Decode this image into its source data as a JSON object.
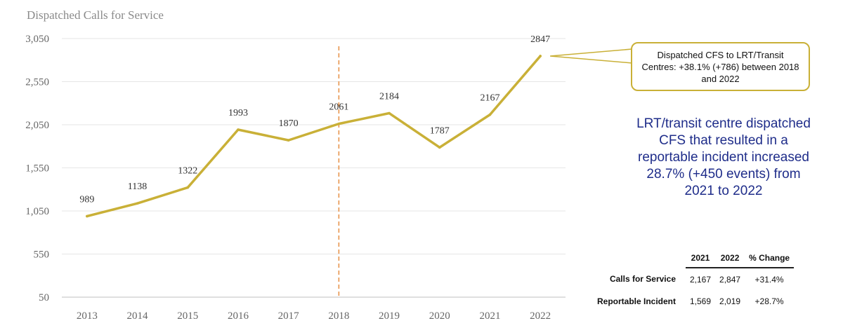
{
  "chart_data": {
    "type": "line",
    "title": "Dispatched Calls for Service",
    "categories": [
      "2013",
      "2014",
      "2015",
      "2016",
      "2017",
      "2018",
      "2019",
      "2020",
      "2021",
      "2022"
    ],
    "series": [
      {
        "values": [
          989,
          1138,
          1322,
          1993,
          1870,
          2061,
          2184,
          1787,
          2167,
          2847
        ],
        "color": "#c9b037"
      }
    ],
    "data_labels": [
      "989",
      "1138",
      "1322",
      "1993",
      "1870",
      "2061",
      "2184",
      "1787",
      "2167",
      "2847"
    ],
    "y_ticks": [
      "50",
      "550",
      "1,050",
      "1,550",
      "2,050",
      "2,550",
      "3,050"
    ],
    "y_tick_values": [
      50,
      550,
      1050,
      1550,
      2050,
      2550,
      3050
    ],
    "ylim": [
      50,
      3050
    ],
    "grid": true,
    "reference_line": {
      "at_category": "2018",
      "color": "#e8954e",
      "style": "dashed"
    }
  },
  "callout": {
    "text": "Dispatched CFS to LRT/Transit Centres: +38.1% (+786) between 2018 and 2022",
    "border_color": "#c9b037"
  },
  "summary": {
    "text": "LRT/transit centre dispatched CFS that resulted in a reportable incident increased 28.7% (+450 events) from 2021 to 2022",
    "color": "#1f2d8a"
  },
  "table": {
    "headers": [
      "",
      "2021",
      "2022",
      "% Change"
    ],
    "rows": [
      {
        "label": "Calls for Service",
        "cells": [
          "2,167",
          "2,847",
          "+31.4%"
        ]
      },
      {
        "label": "Reportable Incident",
        "cells": [
          "1,569",
          "2,019",
          "+28.7%"
        ]
      }
    ]
  }
}
